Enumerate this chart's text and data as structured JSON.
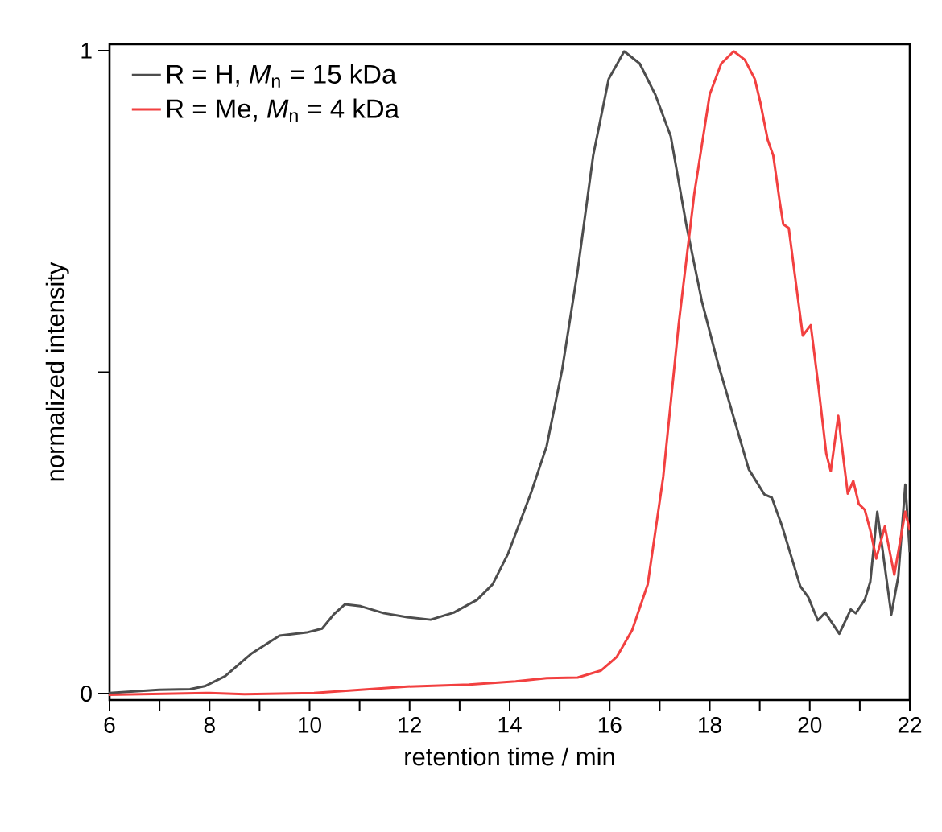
{
  "chart_data": {
    "type": "line",
    "xlabel": "retention time / min",
    "ylabel": "normalized intensity",
    "xlim": [
      6,
      22
    ],
    "ylim": [
      -0.01,
      1.01
    ],
    "xticks": [
      6,
      {
        "value": 7,
        "label": null
      },
      8,
      {
        "value": 9,
        "label": null
      },
      10,
      {
        "value": 11,
        "label": null
      },
      12,
      {
        "value": 13,
        "label": null
      },
      14,
      {
        "value": 15,
        "label": null
      },
      16,
      {
        "value": 17,
        "label": null
      },
      18,
      {
        "value": 19,
        "label": null
      },
      20,
      {
        "value": 21,
        "label": null
      },
      22
    ],
    "yticks": [
      0,
      {
        "value": 0.5,
        "label": null
      },
      1
    ],
    "legend": "top left",
    "grid": false,
    "series": [
      {
        "name": "R = H, *M*$_{n}$ = 15 kDa",
        "color": "#4d4d4d",
        "x": [
          6,
          6.99,
          7.61,
          7.92,
          8.31,
          8.85,
          9.4,
          9.94,
          10.25,
          10.48,
          10.71,
          11.02,
          11.49,
          11.95,
          12.42,
          12.88,
          13.35,
          13.66,
          13.97,
          14.43,
          14.74,
          15.05,
          15.36,
          15.67,
          15.98,
          16.29,
          16.6,
          16.91,
          17.22,
          17.53,
          17.84,
          18.16,
          18.47,
          18.78,
          19.09,
          19.24,
          19.44,
          19.81,
          19.97,
          20.16,
          20.31,
          20.59,
          20.82,
          20.92,
          21.1,
          21.21,
          21.35,
          21.46,
          21.63,
          21.77,
          21.91,
          22
        ],
        "values": [
          0.001,
          0.006,
          0.007,
          0.012,
          0.027,
          0.063,
          0.09,
          0.095,
          0.101,
          0.123,
          0.139,
          0.136,
          0.125,
          0.119,
          0.115,
          0.126,
          0.146,
          0.17,
          0.218,
          0.313,
          0.385,
          0.504,
          0.658,
          0.837,
          0.956,
          0.999,
          0.98,
          0.932,
          0.867,
          0.73,
          0.611,
          0.515,
          0.432,
          0.349,
          0.31,
          0.305,
          0.262,
          0.167,
          0.15,
          0.114,
          0.126,
          0.093,
          0.131,
          0.125,
          0.146,
          0.174,
          0.283,
          0.221,
          0.123,
          0.182,
          0.325,
          0.22
        ]
      },
      {
        "name": "R = Me, *M*$_{n}$ = 4 kDa",
        "color": "#f24040",
        "x": [
          6,
          8,
          8.7,
          10.09,
          11.02,
          11.95,
          13.19,
          14.12,
          14.74,
          15.36,
          15.83,
          16.14,
          16.45,
          16.76,
          17.07,
          17.38,
          17.69,
          18.0,
          18.23,
          18.48,
          18.7,
          18.9,
          19.01,
          19.16,
          19.27,
          19.4,
          19.47,
          19.58,
          19.71,
          19.86,
          20.02,
          20.17,
          20.33,
          20.42,
          20.57,
          20.68,
          20.76,
          20.87,
          20.98,
          21.1,
          21.21,
          21.33,
          21.5,
          21.69,
          21.91,
          22
        ],
        "values": [
          -0.002,
          0.001,
          -0.001,
          0.001,
          0.006,
          0.011,
          0.014,
          0.019,
          0.024,
          0.025,
          0.036,
          0.057,
          0.099,
          0.17,
          0.337,
          0.575,
          0.777,
          0.932,
          0.98,
          0.999,
          0.986,
          0.956,
          0.92,
          0.861,
          0.837,
          0.765,
          0.73,
          0.724,
          0.646,
          0.557,
          0.573,
          0.48,
          0.373,
          0.346,
          0.432,
          0.361,
          0.311,
          0.331,
          0.295,
          0.286,
          0.254,
          0.21,
          0.26,
          0.185,
          0.283,
          0.254
        ]
      }
    ]
  }
}
